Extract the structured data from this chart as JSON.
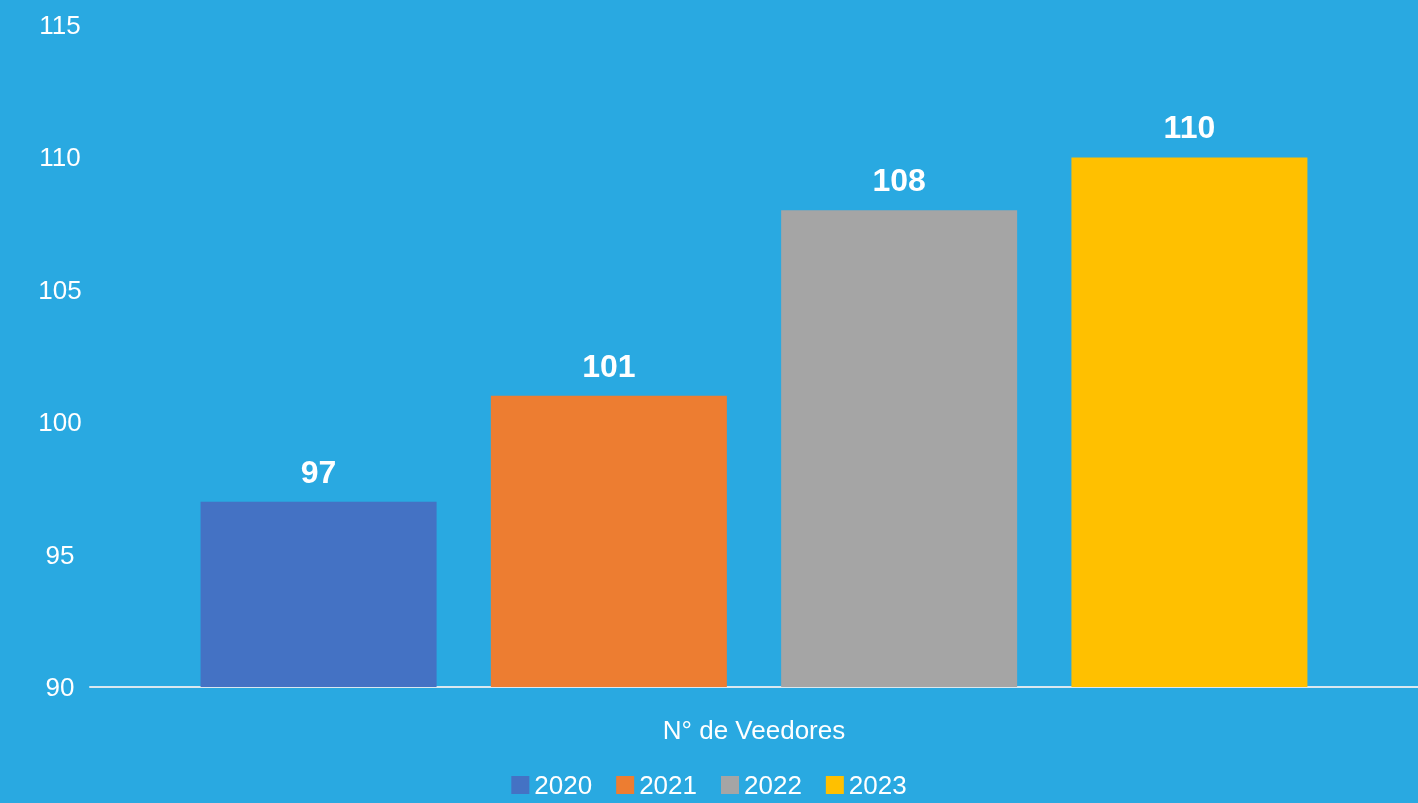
{
  "chart_data": {
    "type": "bar",
    "categories": [
      "N° de Veedores"
    ],
    "series": [
      {
        "name": "2020",
        "color": "#4472c4",
        "values": [
          97
        ]
      },
      {
        "name": "2021",
        "color": "#ed7d31",
        "values": [
          101
        ]
      },
      {
        "name": "2022",
        "color": "#a5a5a5",
        "values": [
          108
        ]
      },
      {
        "name": "2023",
        "color": "#ffc000",
        "values": [
          110
        ]
      }
    ],
    "ylim": [
      90,
      115
    ],
    "yticks": [
      90,
      95,
      100,
      105,
      110,
      115
    ],
    "grid": false,
    "legend": "bottom",
    "data_labels": true
  }
}
